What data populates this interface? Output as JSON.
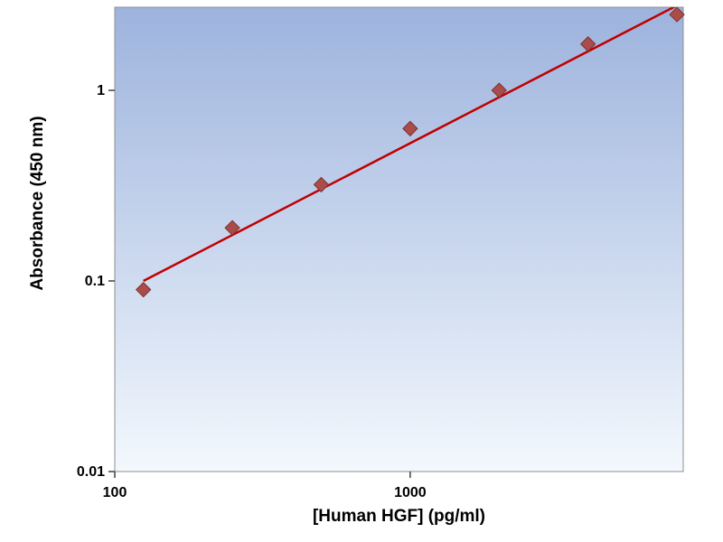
{
  "chart_data": {
    "type": "scatter",
    "title": "",
    "xlabel": "[Human HGF] (pg/ml)",
    "ylabel": "Absorbance (450 nm)",
    "x_scale": "log",
    "y_scale": "log",
    "xlim": [
      100,
      8400
    ],
    "ylim": [
      0.01,
      2.73
    ],
    "grid": false,
    "legend": false,
    "x_ticks": [
      {
        "value": 100,
        "label": "100"
      },
      {
        "value": 1000,
        "label": "1000"
      }
    ],
    "y_ticks": [
      {
        "value": 0.01,
        "label": "0.01"
      },
      {
        "value": 0.1,
        "label": "0.1"
      },
      {
        "value": 1,
        "label": "1"
      }
    ],
    "series": [
      {
        "name": "standard-curve-points",
        "type": "scatter",
        "marker": "diamond",
        "marker_color": "#AA4C4A",
        "marker_edge_color": "#7E3230",
        "points": [
          {
            "x": 125,
            "y": 0.09
          },
          {
            "x": 250,
            "y": 0.19
          },
          {
            "x": 500,
            "y": 0.32
          },
          {
            "x": 1000,
            "y": 0.63
          },
          {
            "x": 2000,
            "y": 1.0
          },
          {
            "x": 4000,
            "y": 1.75
          },
          {
            "x": 8000,
            "y": 2.5
          }
        ]
      },
      {
        "name": "trendline",
        "type": "line",
        "color": "#C00000",
        "points": [
          {
            "x": 125,
            "y": 0.1
          },
          {
            "x": 8400,
            "y": 2.9
          }
        ]
      }
    ],
    "plot_bg_gradient": [
      "#9DB3DD",
      "#F3F8FD"
    ],
    "axis_box_color": "#8F8F8F",
    "tick_color": "#404040",
    "page_bg": "#FFFFFF"
  }
}
